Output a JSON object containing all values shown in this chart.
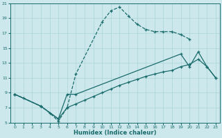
{
  "xlabel": "Humidex (Indice chaleur)",
  "bg_color": "#cce8ec",
  "grid_color": "#aad4d8",
  "line_color": "#1a6b6b",
  "xlim": [
    -0.5,
    23.5
  ],
  "ylim": [
    5,
    21
  ],
  "xticks": [
    0,
    1,
    2,
    3,
    4,
    5,
    6,
    7,
    8,
    9,
    10,
    11,
    12,
    13,
    14,
    15,
    16,
    17,
    18,
    19,
    20,
    21,
    22,
    23
  ],
  "yticks": [
    5,
    7,
    9,
    11,
    13,
    15,
    17,
    19,
    21
  ],
  "line1_x": [
    0,
    1,
    3,
    4,
    5,
    6,
    7,
    10,
    11,
    12,
    13,
    14,
    15,
    16,
    17,
    18,
    19,
    20
  ],
  "line1_y": [
    8.8,
    8.3,
    7.2,
    6.3,
    5.2,
    7.0,
    11.5,
    18.5,
    20.0,
    20.5,
    19.3,
    18.2,
    17.5,
    17.2,
    17.2,
    17.2,
    16.8,
    16.2
  ],
  "line2_x": [
    0,
    3,
    5,
    6,
    7,
    19,
    20,
    21,
    22,
    23
  ],
  "line2_y": [
    8.8,
    7.2,
    5.5,
    8.8,
    8.8,
    14.2,
    12.5,
    14.5,
    12.5,
    11.0
  ],
  "line3_x": [
    0,
    3,
    5,
    6,
    7,
    8,
    9,
    10,
    11,
    12,
    13,
    14,
    15,
    16,
    17,
    18,
    19,
    20,
    21,
    22,
    23
  ],
  "line3_y": [
    8.8,
    7.2,
    5.5,
    7.0,
    7.5,
    8.0,
    8.5,
    9.0,
    9.5,
    10.0,
    10.4,
    10.8,
    11.2,
    11.5,
    11.8,
    12.0,
    12.5,
    12.8,
    13.5,
    12.5,
    11.0
  ]
}
